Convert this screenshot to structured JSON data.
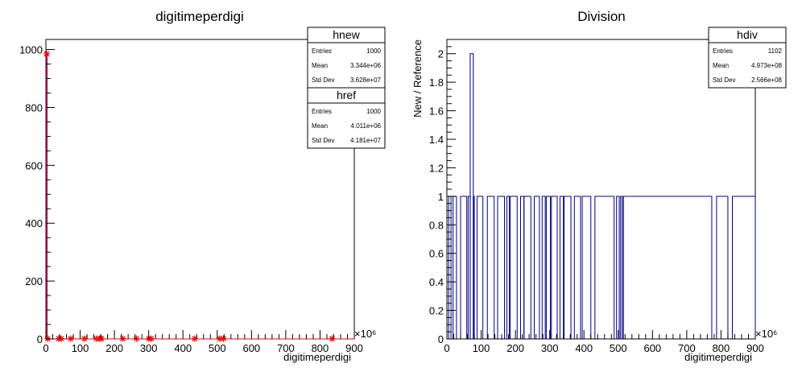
{
  "chart_data": [
    {
      "type": "histogram",
      "title": "digitimeperdigi",
      "xlabel": "digitimeperdigi",
      "ylabel": "",
      "x_multiplier": "×10⁶",
      "xlim": [
        0,
        900
      ],
      "ylim": [
        0,
        1035
      ],
      "xticks": [
        0,
        100,
        200,
        300,
        400,
        500,
        600,
        700,
        800,
        900
      ],
      "yticks": [
        0,
        200,
        400,
        600,
        800,
        1000
      ],
      "series": [
        {
          "name": "hnew",
          "color": "#000099",
          "style": "step",
          "x": [
            0,
            3,
            40,
            70,
            110,
            145,
            158,
            225,
            260,
            300,
            432,
            505,
            516,
            833
          ],
          "y": [
            985,
            1,
            1,
            1,
            1,
            1,
            1,
            1,
            1,
            1,
            1,
            1,
            1,
            1
          ]
        },
        {
          "name": "href",
          "color": "#ff0000",
          "style": "markers",
          "marker": "*",
          "x": [
            0,
            3,
            35,
            42,
            70,
            110,
            145,
            155,
            160,
            222,
            262,
            298,
            305,
            432,
            505,
            516,
            833
          ],
          "y": [
            985,
            1,
            1,
            1,
            1,
            1,
            1,
            1,
            1,
            1,
            1,
            1,
            1,
            1,
            1,
            1,
            1
          ]
        }
      ],
      "stats": [
        {
          "name": "hnew",
          "rows": [
            {
              "label": "Entries",
              "value": "1000"
            },
            {
              "label": "Mean",
              "value": "3.344e+06"
            },
            {
              "label": "Std Dev",
              "value": "3.628e+07"
            }
          ]
        },
        {
          "name": "href",
          "rows": [
            {
              "label": "Entries",
              "value": "1000"
            },
            {
              "label": "Mean",
              "value": "4.011e+06"
            },
            {
              "label": "Std Dev",
              "value": "4.181e+07"
            }
          ]
        }
      ]
    },
    {
      "type": "histogram",
      "title": "Division",
      "xlabel": "digitimeperdigi",
      "ylabel": "New / Reference",
      "x_multiplier": "×10⁶",
      "xlim": [
        0,
        900
      ],
      "ylim": [
        0,
        2.1
      ],
      "xticks": [
        0,
        100,
        200,
        300,
        400,
        500,
        600,
        700,
        800,
        900
      ],
      "yticks": [
        0,
        0.2,
        0.4,
        0.6,
        0.8,
        1,
        1.2,
        1.4,
        1.6,
        1.8,
        2
      ],
      "series": [
        {
          "name": "hdiv",
          "color": "#000080",
          "style": "step",
          "segments": [
            [
              5,
              12,
              1
            ],
            [
              18,
              28,
              1
            ],
            [
              40,
              58,
              1
            ],
            [
              62,
              68,
              1
            ],
            [
              68,
              77,
              2
            ],
            [
              77,
              80,
              1
            ],
            [
              88,
              105,
              1
            ],
            [
              118,
              138,
              1
            ],
            [
              148,
              168,
              1
            ],
            [
              175,
              182,
              1
            ],
            [
              185,
              205,
              1
            ],
            [
              215,
              225,
              1
            ],
            [
              225,
              245,
              1
            ],
            [
              255,
              270,
              1
            ],
            [
              278,
              287,
              1
            ],
            [
              290,
              302,
              1
            ],
            [
              305,
              322,
              1
            ],
            [
              330,
              340,
              1
            ],
            [
              342,
              362,
              1
            ],
            [
              372,
              390,
              1
            ],
            [
              395,
              420,
              1
            ],
            [
              432,
              488,
              1
            ],
            [
              495,
              503,
              1
            ],
            [
              507,
              512,
              1
            ],
            [
              515,
              773,
              1
            ],
            [
              787,
              820,
              1
            ],
            [
              833,
              900,
              1
            ]
          ]
        }
      ],
      "stats": [
        {
          "name": "hdiv",
          "rows": [
            {
              "label": "Entries",
              "value": "1102"
            },
            {
              "label": "Mean",
              "value": "4.973e+08"
            },
            {
              "label": "Std Dev",
              "value": "2.566e+08"
            }
          ]
        }
      ]
    }
  ]
}
